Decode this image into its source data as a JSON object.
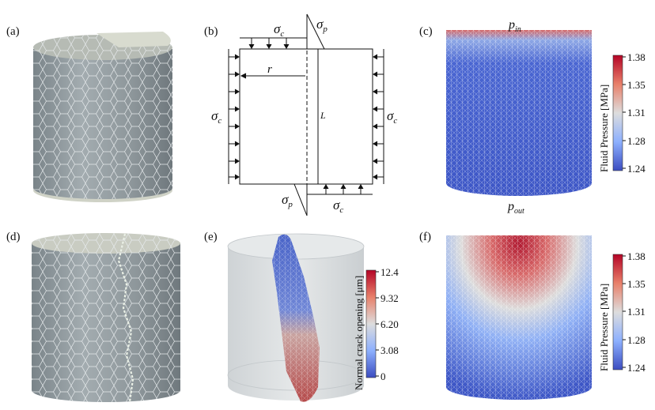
{
  "panels": {
    "a": {
      "label": "(a)"
    },
    "b": {
      "label": "(b)",
      "sigma": "σ",
      "sub_c": "c",
      "sub_p": "p",
      "r": "r",
      "L": "L"
    },
    "c": {
      "label": "(c)",
      "p": "p",
      "sub_in": "in",
      "sub_out": "out",
      "colorbar": {
        "title": "Fluid Pressure [MPa]",
        "ticks": [
          "1.38",
          "1.35",
          "1.31",
          "1.28",
          "1.24"
        ]
      }
    },
    "d": {
      "label": "(d)"
    },
    "e": {
      "label": "(e)",
      "colorbar": {
        "title": "Normal crack opening [μm]",
        "ticks": [
          "12.4",
          "9.32",
          "6.20",
          "3.08",
          "0"
        ]
      }
    },
    "f": {
      "label": "(f)",
      "colorbar": {
        "title": "Fluid Pressure [MPa]",
        "ticks": [
          "1.38",
          "1.35",
          "1.31",
          "1.28",
          "1.24"
        ]
      }
    }
  },
  "colors": {
    "cylinder_gray": "#8f989d",
    "cap_light": "#cfd2c6",
    "pressure_low": "#3b4cc0",
    "pressure_mid": "#dddddd",
    "pressure_high": "#b40426"
  }
}
